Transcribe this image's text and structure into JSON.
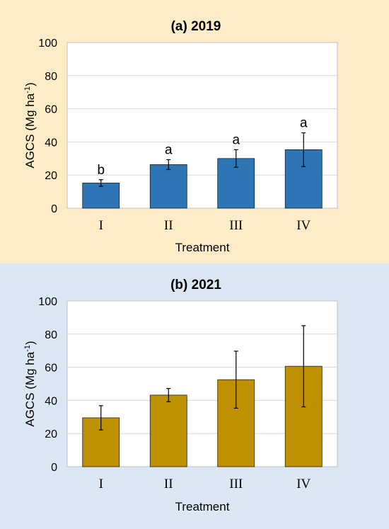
{
  "chart_data": [
    {
      "type": "bar",
      "title": "(a) 2019",
      "xlabel": "Treatment",
      "ylabel": "AGCS (Mg ha",
      "ylabel_sup": "-1",
      "ylabel_tail": ")",
      "categories": [
        "I",
        "II",
        "III",
        "IV"
      ],
      "values": [
        15.2,
        26.3,
        30.0,
        35.3
      ],
      "error": [
        2.0,
        3.0,
        5.3,
        10.2
      ],
      "significance": [
        "b",
        "a",
        "a",
        "a"
      ],
      "ylim": [
        0,
        100
      ],
      "yticks": [
        "0",
        "20",
        "40",
        "60",
        "80",
        "100"
      ],
      "grid": true,
      "bar_color": "#2e75b6",
      "background": "#fdecc6"
    },
    {
      "type": "bar",
      "title": "(b) 2021",
      "xlabel": "Treatment",
      "ylabel": "AGCS (Mg ha",
      "ylabel_sup": "-1",
      "ylabel_tail": ")",
      "categories": [
        "I",
        "II",
        "III",
        "IV"
      ],
      "values": [
        29.5,
        43.2,
        52.5,
        60.6
      ],
      "error": [
        7.3,
        4.0,
        17.2,
        24.5
      ],
      "ylim": [
        0,
        100
      ],
      "yticks": [
        "0",
        "20",
        "40",
        "60",
        "80",
        "100"
      ],
      "grid": true,
      "bar_color": "#bf9000",
      "background": "#dce7f4"
    }
  ]
}
